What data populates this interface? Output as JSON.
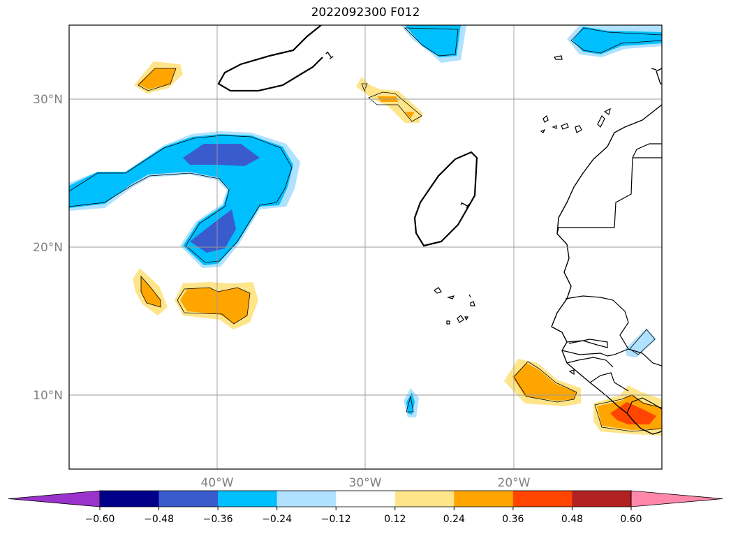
{
  "map": {
    "title": "2022092300 F012",
    "lat_labels": [
      "30°N",
      "20°N",
      "10°N"
    ],
    "lon_labels": [
      "40°W",
      "30°W",
      "20°W"
    ],
    "contour_label": "1",
    "extent": {
      "lon_min": -50,
      "lon_max": -10,
      "lat_min": 5,
      "lat_max": 35
    }
  },
  "colorbar": {
    "tick_labels": [
      "−0.60",
      "−0.48",
      "−0.36",
      "−0.24",
      "−0.12",
      "0.12",
      "0.24",
      "0.36",
      "0.48",
      "0.60"
    ],
    "colors": [
      "#9933cc",
      "#00008b",
      "#3a5bcc",
      "#00bfff",
      "#b0e2ff",
      "#ffffff",
      "#ffe58a",
      "#ffa500",
      "#ff4500",
      "#b22222",
      "#ff88aa"
    ]
  },
  "colors": {
    "neg_light": "#b0e2ff",
    "neg_mid": "#00bfff",
    "neg_dark": "#3a5bcc",
    "pos_light": "#ffe58a",
    "pos_mid": "#ffa500",
    "pos_dark": "#ff4500"
  }
}
